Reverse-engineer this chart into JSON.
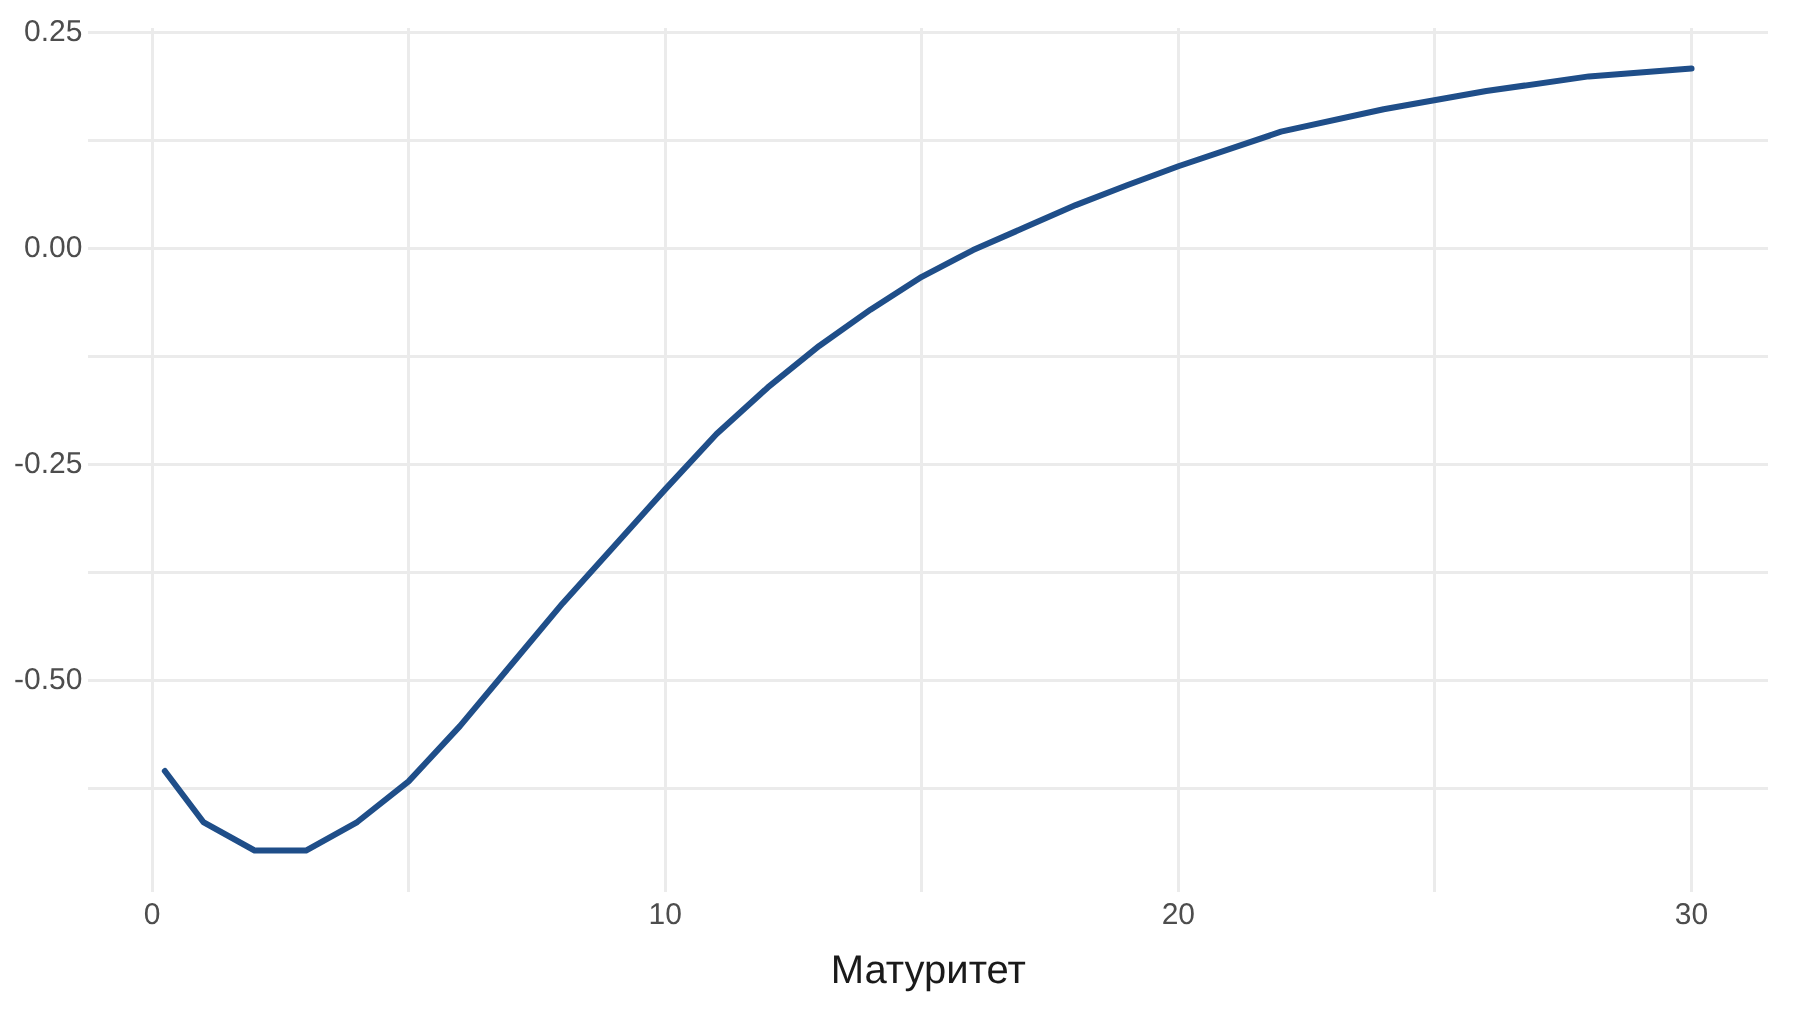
{
  "chart_data": {
    "type": "line",
    "xlabel": "Матуритет",
    "x": [
      0.25,
      1,
      2,
      3,
      4,
      5,
      6,
      7,
      8,
      9,
      10,
      11,
      12,
      13,
      14,
      15,
      16,
      17,
      18,
      19,
      20,
      22,
      24,
      26,
      28,
      30
    ],
    "series": [
      {
        "color": "#1f4e89",
        "values": [
          -0.605,
          -0.664,
          -0.697,
          -0.697,
          -0.664,
          -0.617,
          -0.553,
          -0.482,
          -0.411,
          -0.345,
          -0.279,
          -0.215,
          -0.161,
          -0.113,
          -0.071,
          -0.033,
          -0.002,
          0.024,
          0.05,
          0.073,
          0.095,
          0.135,
          0.161,
          0.182,
          0.199,
          0.208
        ]
      }
    ],
    "xlim": [
      -1.24,
      31.49
    ],
    "ylim": [
      -0.745,
      0.255
    ],
    "xticks": [
      0,
      {
        "value": 5,
        "label": null
      },
      10,
      {
        "value": 15,
        "label": null
      },
      20,
      {
        "value": 25,
        "label": null
      },
      30
    ],
    "yticks": [
      {
        "value": -0.625,
        "label": null
      },
      {
        "value": -0.5,
        "label": "-0.50"
      },
      {
        "value": -0.375,
        "label": null
      },
      {
        "value": -0.25,
        "label": "-0.25"
      },
      {
        "value": -0.125,
        "label": null
      },
      {
        "value": 0,
        "label": "0.00"
      },
      {
        "value": 0.125,
        "label": null
      },
      {
        "value": 0.25,
        "label": "0.25"
      }
    ],
    "grid": true,
    "legend": false,
    "marker": "none",
    "line_style": "solid"
  }
}
